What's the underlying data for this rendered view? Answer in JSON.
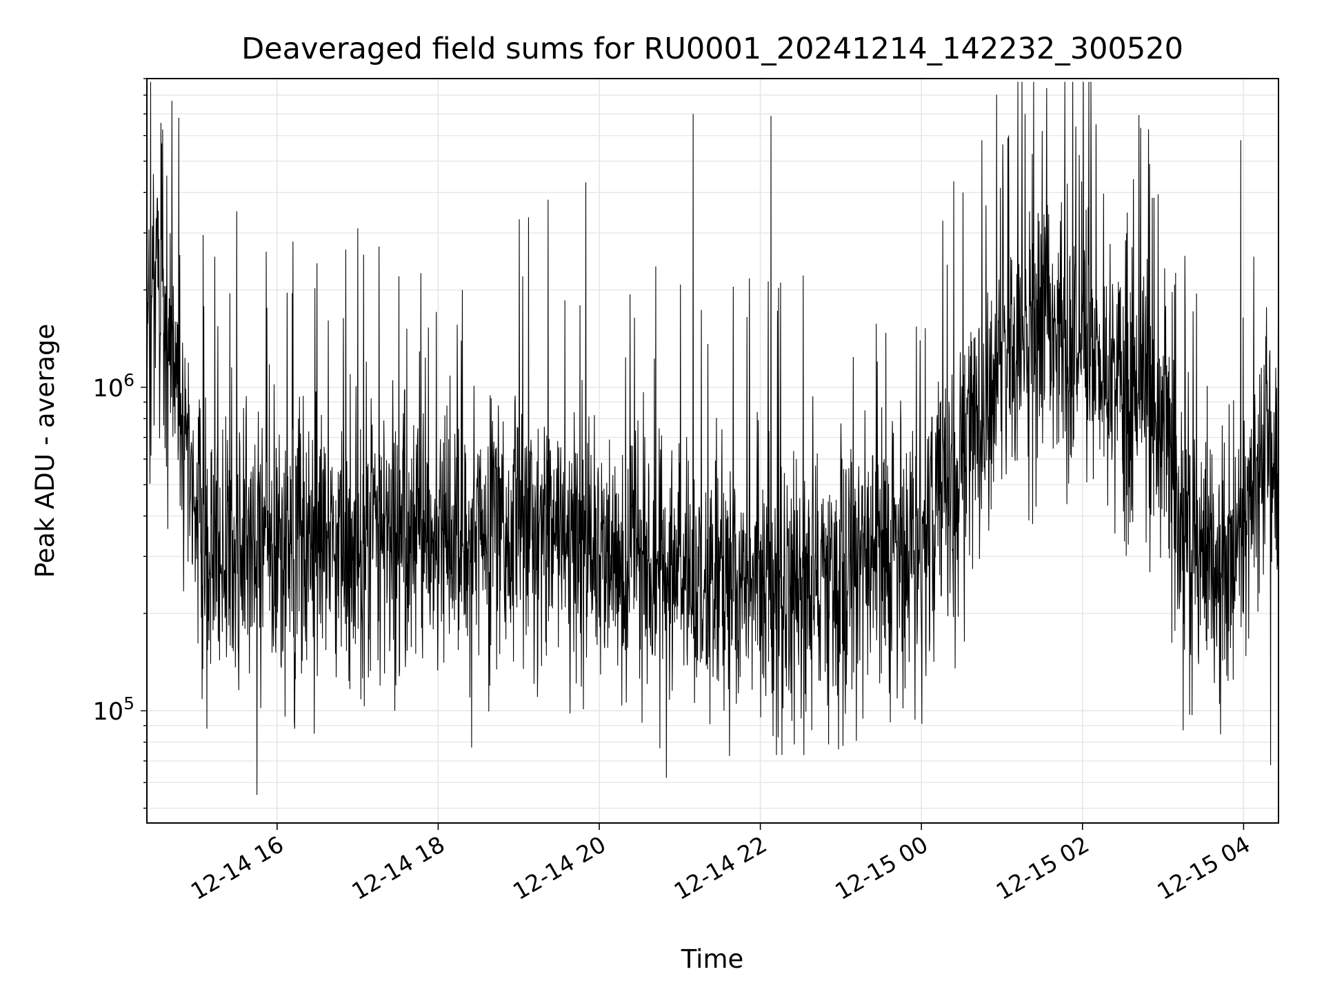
{
  "chart_data": {
    "type": "line",
    "title": "Deaveraged field sums for RU0001_20241214_142232_300520",
    "xlabel": "Time",
    "ylabel": "Peak ADU - average",
    "yscale": "log",
    "xlim": [
      "2024-12-14 14:23",
      "2024-12-15 04:26"
    ],
    "ylim": [
      45000,
      9000000
    ],
    "xticks": [
      {
        "t": "2024-12-14 16:00",
        "label": "12-14 16"
      },
      {
        "t": "2024-12-14 18:00",
        "label": "12-14 18"
      },
      {
        "t": "2024-12-14 20:00",
        "label": "12-14 20"
      },
      {
        "t": "2024-12-14 22:00",
        "label": "12-14 22"
      },
      {
        "t": "2024-12-15 00:00",
        "label": "12-15 00"
      },
      {
        "t": "2024-12-15 02:00",
        "label": "12-15 02"
      },
      {
        "t": "2024-12-15 04:00",
        "label": "12-15 04"
      }
    ],
    "yticks": [
      {
        "value": 100000,
        "base": "10",
        "exp": "5"
      },
      {
        "value": 1000000,
        "base": "10",
        "exp": "6"
      }
    ],
    "grid": true,
    "line_color": "#000000",
    "grid_color": "#e6e6e6",
    "series": [
      {
        "x": [
          "2024-12-14 14:23",
          "2024-12-14 14:30",
          "2024-12-14 14:37",
          "2024-12-14 14:45",
          "2024-12-14 14:52",
          "2024-12-14 15:00",
          "2024-12-14 15:15",
          "2024-12-14 15:30",
          "2024-12-14 15:45",
          "2024-12-14 16:00",
          "2024-12-14 16:30",
          "2024-12-14 17:00",
          "2024-12-14 17:30",
          "2024-12-14 18:00",
          "2024-12-14 18:30",
          "2024-12-14 19:00",
          "2024-12-14 19:30",
          "2024-12-14 20:00",
          "2024-12-14 20:30",
          "2024-12-14 21:00",
          "2024-12-14 21:30",
          "2024-12-14 22:00",
          "2024-12-14 22:30",
          "2024-12-14 23:00",
          "2024-12-14 23:30",
          "2024-12-15 00:00",
          "2024-12-15 00:30",
          "2024-12-15 01:00",
          "2024-12-15 01:30",
          "2024-12-15 02:00",
          "2024-12-15 02:30",
          "2024-12-15 03:00",
          "2024-12-15 03:15",
          "2024-12-15 03:30",
          "2024-12-15 03:45",
          "2024-12-15 04:00",
          "2024-12-15 04:15",
          "2024-12-15 04:26"
        ],
        "y": [
          1500000,
          2500000,
          1500000,
          1000000,
          600000,
          350000,
          320000,
          300000,
          330000,
          320000,
          330000,
          320000,
          340000,
          340000,
          380000,
          390000,
          360000,
          330000,
          300000,
          260000,
          250000,
          250000,
          260000,
          280000,
          300000,
          320000,
          550000,
          1200000,
          1600000,
          1300000,
          1100000,
          900000,
          350000,
          330000,
          320000,
          360000,
          600000,
          700000
        ],
        "spikes": [
          {
            "t": "2024-12-14 15:30",
            "y": 3500000
          },
          {
            "t": "2024-12-14 15:45",
            "y": 55000
          },
          {
            "t": "2024-12-14 17:00",
            "y": 3100000
          },
          {
            "t": "2024-12-14 18:25",
            "y": 77000
          },
          {
            "t": "2024-12-14 19:22",
            "y": 3800000
          },
          {
            "t": "2024-12-14 19:50",
            "y": 4300000
          },
          {
            "t": "2024-12-14 20:50",
            "y": 62000
          },
          {
            "t": "2024-12-14 21:10",
            "y": 7000000
          },
          {
            "t": "2024-12-14 22:08",
            "y": 6900000
          },
          {
            "t": "2024-12-14 22:12",
            "y": 73000
          },
          {
            "t": "2024-12-15 00:45",
            "y": 5800000
          },
          {
            "t": "2024-12-15 01:05",
            "y": 6000000
          },
          {
            "t": "2024-12-15 01:30",
            "y": 6200000
          },
          {
            "t": "2024-12-15 02:10",
            "y": 6500000
          },
          {
            "t": "2024-12-15 02:50",
            "y": 4900000
          },
          {
            "t": "2024-12-15 03:15",
            "y": 87000
          },
          {
            "t": "2024-12-15 03:58",
            "y": 5800000
          },
          {
            "t": "2024-12-15 04:20",
            "y": 68000
          }
        ]
      }
    ]
  }
}
